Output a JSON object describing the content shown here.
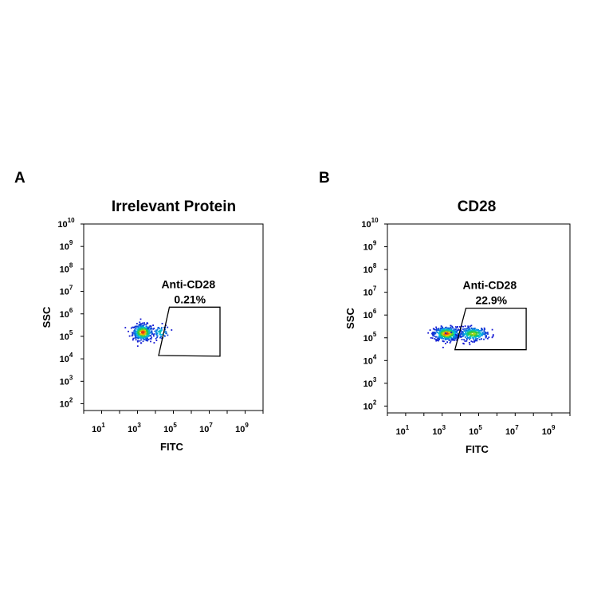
{
  "chart_data": [
    {
      "type": "scatter",
      "panel_letter": "A",
      "title": "Irrelevant Protein",
      "xlabel": "FITC",
      "ylabel": "SSC",
      "x_scale": "log",
      "y_scale": "log",
      "xlim": [
        1,
        10000000000
      ],
      "ylim": [
        50,
        10000000000
      ],
      "x_ticks": [
        10,
        1000,
        100000,
        10000000,
        1000000000
      ],
      "x_tick_exponents": [
        "1",
        "3",
        "5",
        "7",
        "9"
      ],
      "y_ticks": [
        100,
        1000,
        10000,
        100000,
        1000000,
        10000000,
        100000000,
        1000000000,
        10000000000
      ],
      "y_tick_exponents": [
        "2",
        "3",
        "4",
        "5",
        "6",
        "7",
        "8",
        "9",
        "10"
      ],
      "tick_base": "10",
      "gate": {
        "name": "Anti-CD28",
        "percent": "0.21%",
        "vertices": [
          [
            60000,
            2000000
          ],
          [
            40000000,
            2000000
          ],
          [
            40000000,
            13000
          ],
          [
            15000,
            14000
          ]
        ]
      },
      "population": [
        {
          "x_center": 2000,
          "y_center": 150000,
          "x_spread_log": 0.28,
          "y_spread_log": 0.18,
          "density": "high",
          "count": 420
        },
        {
          "x_center": 20000,
          "y_center": 150000,
          "x_spread_log": 0.25,
          "y_spread_log": 0.16,
          "density": "low",
          "count": 60
        }
      ],
      "grid": false
    },
    {
      "type": "scatter",
      "panel_letter": "B",
      "title": "CD28",
      "xlabel": "FITC",
      "ylabel": "SSC",
      "x_scale": "log",
      "y_scale": "log",
      "xlim": [
        1,
        10000000000
      ],
      "ylim": [
        50,
        10000000000
      ],
      "x_ticks": [
        10,
        1000,
        100000,
        10000000,
        1000000000
      ],
      "x_tick_exponents": [
        "1",
        "3",
        "5",
        "7",
        "9"
      ],
      "y_ticks": [
        100,
        1000,
        10000,
        100000,
        1000000,
        10000000,
        100000000,
        1000000000,
        10000000000
      ],
      "y_tick_exponents": [
        "2",
        "3",
        "4",
        "5",
        "6",
        "7",
        "8",
        "9",
        "10"
      ],
      "tick_base": "10",
      "gate": {
        "name": "Anti-CD28",
        "percent": "22.9%",
        "vertices": [
          [
            20000,
            2000000
          ],
          [
            40000000,
            2000000
          ],
          [
            40000000,
            30000
          ],
          [
            5000,
            30000
          ]
        ]
      },
      "population": [
        {
          "x_center": 1800,
          "y_center": 150000,
          "x_spread_log": 0.35,
          "y_spread_log": 0.15,
          "density": "high",
          "count": 480
        },
        {
          "x_center": 50000,
          "y_center": 150000,
          "x_spread_log": 0.4,
          "y_spread_log": 0.15,
          "density": "medium",
          "count": 260
        }
      ],
      "grid": false
    }
  ]
}
